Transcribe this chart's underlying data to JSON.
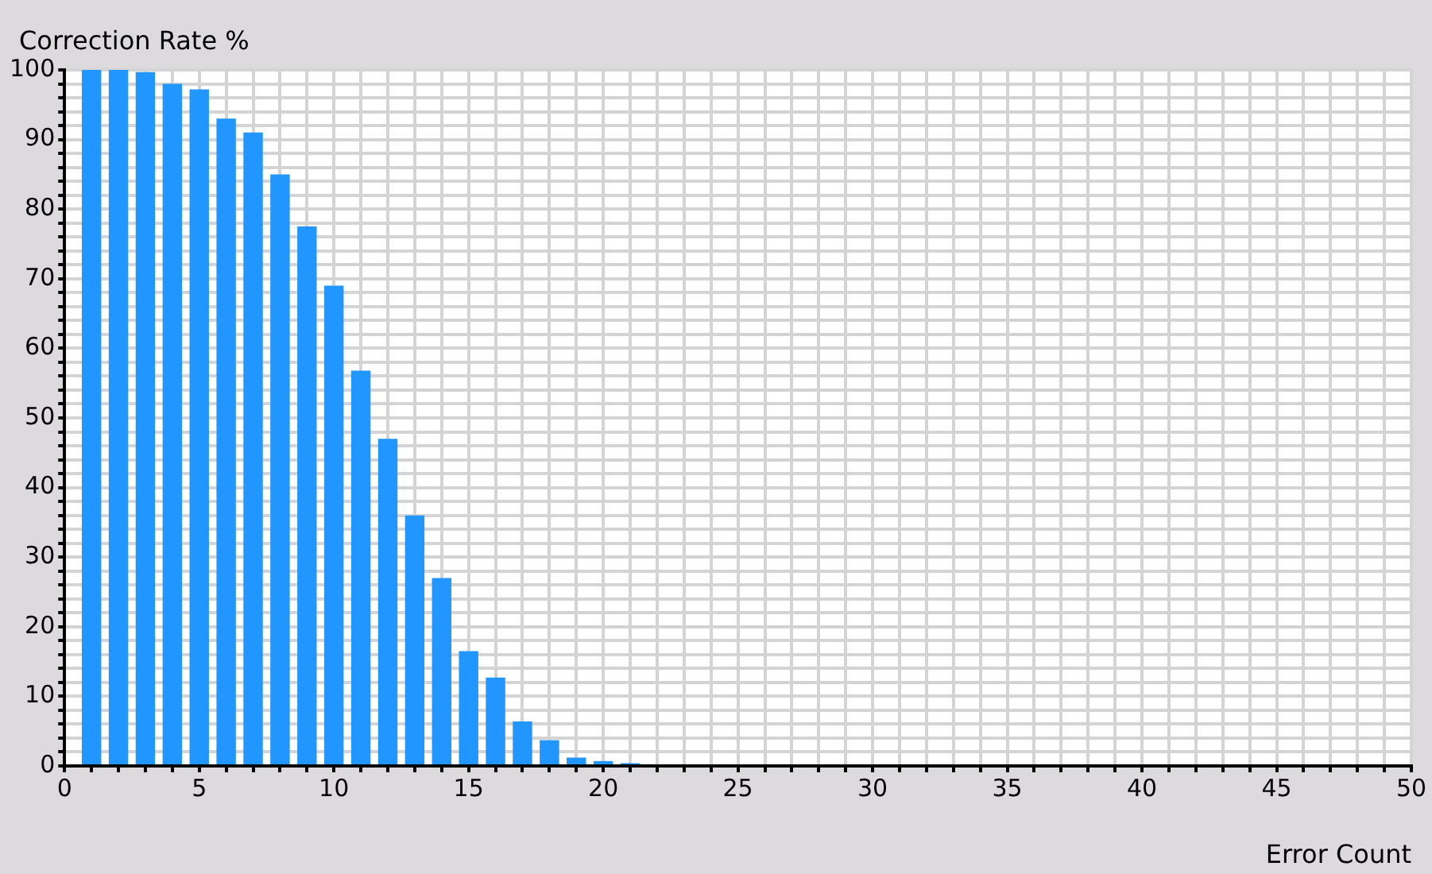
{
  "chart_data": {
    "type": "bar",
    "ylabel": "Correction Rate %",
    "xlabel": "Error Count",
    "x": [
      1,
      2,
      3,
      4,
      5,
      6,
      7,
      8,
      9,
      10,
      11,
      12,
      13,
      14,
      15,
      16,
      17,
      18,
      19,
      20,
      21
    ],
    "values": [
      100,
      100,
      99.7,
      98,
      97.2,
      93,
      91,
      85,
      77.5,
      69,
      56.8,
      47,
      36,
      27,
      16.5,
      12.7,
      6.4,
      3.7,
      1.2,
      0.7,
      0.4
    ],
    "color": "#2196fe",
    "xlim": [
      0,
      50
    ],
    "xticks": [
      0,
      {
        "value": 1,
        "label": null
      },
      {
        "value": 2,
        "label": null
      },
      {
        "value": 3,
        "label": null
      },
      {
        "value": 4,
        "label": null
      },
      5,
      {
        "value": 6,
        "label": null
      },
      {
        "value": 7,
        "label": null
      },
      {
        "value": 8,
        "label": null
      },
      {
        "value": 9,
        "label": null
      },
      10,
      {
        "value": 11,
        "label": null
      },
      {
        "value": 12,
        "label": null
      },
      {
        "value": 13,
        "label": null
      },
      {
        "value": 14,
        "label": null
      },
      15,
      {
        "value": 16,
        "label": null
      },
      {
        "value": 17,
        "label": null
      },
      {
        "value": 18,
        "label": null
      },
      {
        "value": 19,
        "label": null
      },
      20,
      {
        "value": 21,
        "label": null
      },
      {
        "value": 22,
        "label": null
      },
      {
        "value": 23,
        "label": null
      },
      {
        "value": 24,
        "label": null
      },
      25,
      {
        "value": 26,
        "label": null
      },
      {
        "value": 27,
        "label": null
      },
      {
        "value": 28,
        "label": null
      },
      {
        "value": 29,
        "label": null
      },
      30,
      {
        "value": 31,
        "label": null
      },
      {
        "value": 32,
        "label": null
      },
      {
        "value": 33,
        "label": null
      },
      {
        "value": 34,
        "label": null
      },
      35,
      {
        "value": 36,
        "label": null
      },
      {
        "value": 37,
        "label": null
      },
      {
        "value": 38,
        "label": null
      },
      {
        "value": 39,
        "label": null
      },
      40,
      {
        "value": 41,
        "label": null
      },
      {
        "value": 42,
        "label": null
      },
      {
        "value": 43,
        "label": null
      },
      {
        "value": 44,
        "label": null
      },
      45,
      {
        "value": 46,
        "label": null
      },
      {
        "value": 47,
        "label": null
      },
      {
        "value": 48,
        "label": null
      },
      {
        "value": 49,
        "label": null
      },
      50
    ],
    "ylim": [
      0,
      100
    ],
    "yticks": [
      0,
      {
        "value": 2,
        "label": null
      },
      {
        "value": 4,
        "label": null
      },
      {
        "value": 6,
        "label": null
      },
      {
        "value": 8,
        "label": null
      },
      10,
      {
        "value": 12,
        "label": null
      },
      {
        "value": 14,
        "label": null
      },
      {
        "value": 16,
        "label": null
      },
      {
        "value": 18,
        "label": null
      },
      20,
      {
        "value": 22,
        "label": null
      },
      {
        "value": 24,
        "label": null
      },
      {
        "value": 26,
        "label": null
      },
      {
        "value": 28,
        "label": null
      },
      30,
      {
        "value": 32,
        "label": null
      },
      {
        "value": 34,
        "label": null
      },
      {
        "value": 36,
        "label": null
      },
      {
        "value": 38,
        "label": null
      },
      40,
      {
        "value": 42,
        "label": null
      },
      {
        "value": 44,
        "label": null
      },
      {
        "value": 46,
        "label": null
      },
      {
        "value": 48,
        "label": null
      },
      50,
      {
        "value": 52,
        "label": null
      },
      {
        "value": 54,
        "label": null
      },
      {
        "value": 56,
        "label": null
      },
      {
        "value": 58,
        "label": null
      },
      60,
      {
        "value": 62,
        "label": null
      },
      {
        "value": 64,
        "label": null
      },
      {
        "value": 66,
        "label": null
      },
      {
        "value": 68,
        "label": null
      },
      70,
      {
        "value": 72,
        "label": null
      },
      {
        "value": 74,
        "label": null
      },
      {
        "value": 76,
        "label": null
      },
      {
        "value": 78,
        "label": null
      },
      80,
      {
        "value": 82,
        "label": null
      },
      {
        "value": 84,
        "label": null
      },
      {
        "value": 86,
        "label": null
      },
      {
        "value": 88,
        "label": null
      },
      90,
      {
        "value": 92,
        "label": null
      },
      {
        "value": 94,
        "label": null
      },
      {
        "value": 96,
        "label": null
      },
      {
        "value": 98,
        "label": null
      },
      100
    ],
    "grid": true
  }
}
